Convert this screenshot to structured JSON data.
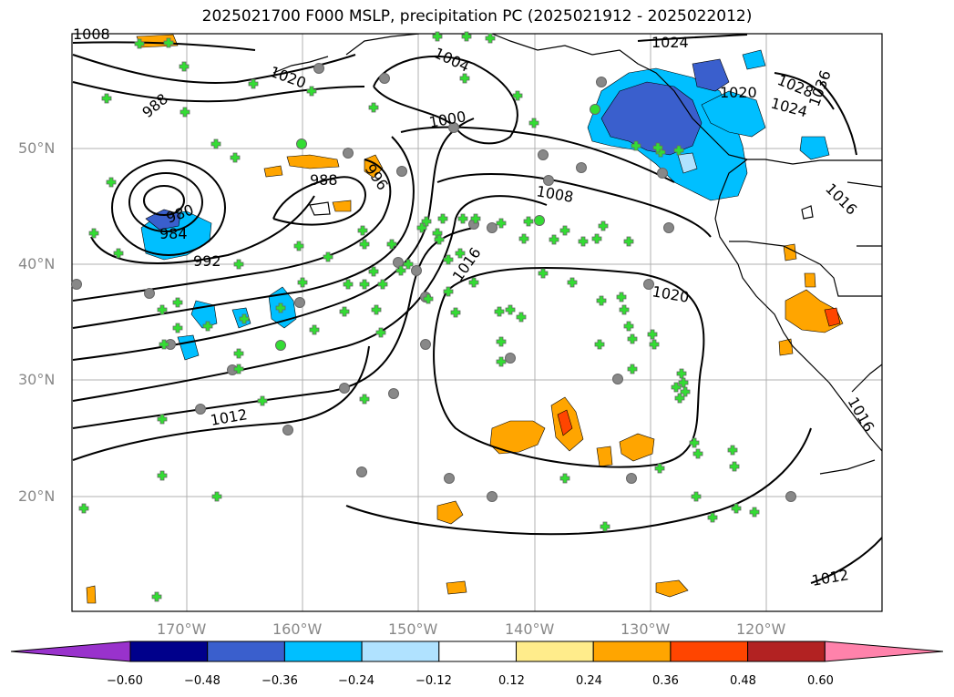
{
  "title": "2025021700 F000 MSLP, precipitation PC (2025021912 - 2025022012)",
  "colors": {
    "coast": "#000000",
    "grid": "#b0b0b0",
    "obs_marker": "#33dd33",
    "obs_marker_ring": "#666666"
  },
  "lat_labels": [
    "50°N",
    "40°N",
    "30°N",
    "20°N"
  ],
  "lon_labels": [
    "170°W",
    "160°W",
    "150°W",
    "140°W",
    "130°W",
    "120°W"
  ],
  "isobar_labels": [
    "1008",
    "1024",
    "1028",
    "1036",
    "1020",
    "1024",
    "1004",
    "1020",
    "988",
    "1000",
    "988",
    "996",
    "1008",
    "980",
    "984",
    "992",
    "1016",
    "1020",
    "1012",
    "1016",
    "1012",
    "1016"
  ],
  "colorbar": {
    "colors": [
      "#9932cc",
      "#00008b",
      "#3a5fcd",
      "#00bfff",
      "#b0e2ff",
      "#ffffff",
      "#ffec8b",
      "#ffa500",
      "#ff4500",
      "#b22222",
      "#ff82ab"
    ],
    "tick_labels": [
      "−0.60",
      "−0.48",
      "−0.36",
      "−0.24",
      "−0.12",
      "0.12",
      "0.24",
      "0.36",
      "0.48",
      "0.60"
    ]
  }
}
